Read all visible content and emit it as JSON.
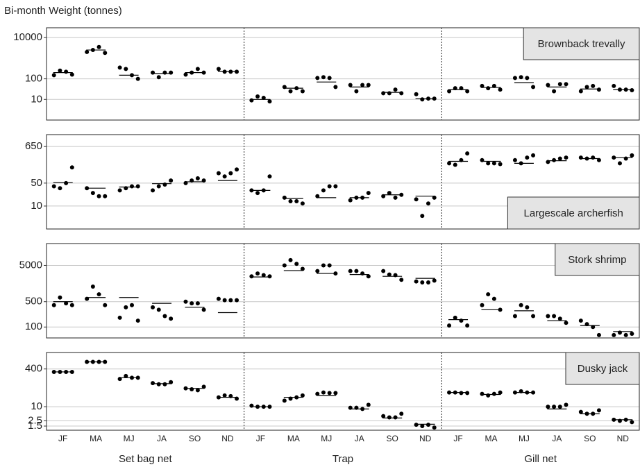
{
  "chart_data": {
    "type": "dot",
    "title": "Bi-month Weight (tonnes)",
    "log": true,
    "grid": true,
    "groups": [
      "Set bag net",
      "Trap",
      "Gill net"
    ],
    "categories": [
      "JF",
      "MA",
      "MJ",
      "JA",
      "SO",
      "ND"
    ],
    "point_color": "#000000",
    "mean_color": "#000000",
    "panels": [
      {
        "name": "Brownback trevally",
        "label_corner": "top-right",
        "ylim": [
          1,
          30000
        ],
        "yticks": [
          10000,
          100,
          10
        ],
        "points": [
          [
            150,
            250,
            220,
            160
          ],
          [
            2000,
            2500,
            3500,
            1800
          ],
          [
            350,
            300,
            150,
            100
          ],
          [
            200,
            120,
            200,
            200
          ],
          [
            160,
            200,
            300,
            200
          ],
          [
            300,
            220,
            220,
            220
          ],
          [
            9,
            14,
            12,
            8
          ],
          [
            40,
            25,
            35,
            25
          ],
          [
            110,
            120,
            110,
            40
          ],
          [
            50,
            25,
            50,
            50
          ],
          [
            20,
            20,
            30,
            20
          ],
          [
            18,
            10,
            11,
            11
          ],
          [
            25,
            35,
            35,
            25
          ],
          [
            45,
            35,
            45,
            30
          ],
          [
            110,
            120,
            110,
            40
          ],
          [
            50,
            25,
            55,
            55
          ],
          [
            25,
            40,
            45,
            30
          ],
          [
            45,
            30,
            30,
            28
          ]
        ],
        "means": [
          200,
          2500,
          150,
          180,
          200,
          230,
          10,
          35,
          70,
          40,
          22,
          11,
          30,
          38,
          65,
          40,
          32,
          30
        ]
      },
      {
        "name": "Largescale archerfish",
        "label_corner": "bottom-right",
        "ylim": [
          2,
          1500
        ],
        "yticks": [
          650,
          50,
          10
        ],
        "points": [
          [
            40,
            35,
            50,
            150
          ],
          [
            35,
            25,
            20,
            20
          ],
          [
            30,
            35,
            40,
            40
          ],
          [
            30,
            40,
            45,
            60
          ],
          [
            50,
            60,
            70,
            60
          ],
          [
            100,
            80,
            100,
            130
          ],
          [
            30,
            25,
            30,
            80
          ],
          [
            18,
            14,
            14,
            12
          ],
          [
            20,
            30,
            40,
            40
          ],
          [
            15,
            18,
            18,
            25
          ],
          [
            20,
            25,
            18,
            22
          ],
          [
            16,
            5,
            12,
            18
          ],
          [
            200,
            180,
            250,
            400
          ],
          [
            250,
            200,
            200,
            190
          ],
          [
            250,
            200,
            300,
            350
          ],
          [
            220,
            250,
            280,
            300
          ],
          [
            300,
            280,
            300,
            250
          ],
          [
            300,
            200,
            280,
            350
          ]
        ],
        "means": [
          52,
          35,
          38,
          48,
          55,
          60,
          30,
          17,
          18,
          18,
          22,
          20,
          230,
          230,
          200,
          240,
          280,
          300
        ]
      },
      {
        "name": "Stork shrimp",
        "label_corner": "top-right",
        "ylim": [
          50,
          20000
        ],
        "yticks": [
          5000,
          500,
          100
        ],
        "points": [
          [
            400,
            650,
            450,
            400
          ],
          [
            600,
            1300,
            800,
            400
          ],
          [
            180,
            350,
            400,
            150
          ],
          [
            350,
            300,
            200,
            170
          ],
          [
            500,
            450,
            450,
            300
          ],
          [
            600,
            550,
            550,
            550
          ],
          [
            2500,
            3000,
            2700,
            2500
          ],
          [
            5000,
            7000,
            5500,
            4000
          ],
          [
            3500,
            5000,
            5000,
            3000
          ],
          [
            3500,
            3500,
            3000,
            2500
          ],
          [
            3500,
            2800,
            2700,
            2000
          ],
          [
            1800,
            1700,
            1700,
            1900
          ],
          [
            110,
            180,
            150,
            110
          ],
          [
            400,
            800,
            600,
            300
          ],
          [
            200,
            400,
            350,
            200
          ],
          [
            200,
            200,
            170,
            130
          ],
          [
            150,
            120,
            100,
            60
          ],
          [
            60,
            70,
            60,
            65
          ]
        ],
        "means": [
          500,
          650,
          650,
          450,
          350,
          250,
          2400,
          3600,
          3000,
          2800,
          2500,
          2200,
          160,
          300,
          280,
          150,
          110,
          75
        ]
      },
      {
        "name": "Dusky jack",
        "label_corner": "top-right",
        "ylim": [
          1,
          2000
        ],
        "yticks": [
          400,
          10,
          2.5,
          1.5
        ],
        "points": [
          [
            300,
            300,
            300,
            300
          ],
          [
            800,
            800,
            800,
            800
          ],
          [
            150,
            200,
            170,
            170
          ],
          [
            100,
            90,
            90,
            110
          ],
          [
            60,
            55,
            50,
            70
          ],
          [
            25,
            30,
            28,
            22
          ],
          [
            11,
            10,
            10,
            10
          ],
          [
            18,
            22,
            25,
            30
          ],
          [
            35,
            40,
            38,
            38
          ],
          [
            9,
            9,
            8,
            12
          ],
          [
            4,
            3.5,
            3.5,
            5
          ],
          [
            1.7,
            1.5,
            1.7,
            1.3
          ],
          [
            40,
            40,
            38,
            38
          ],
          [
            35,
            30,
            35,
            40
          ],
          [
            40,
            45,
            40,
            40
          ],
          [
            10,
            10,
            10,
            12
          ],
          [
            6,
            5,
            5,
            7
          ],
          [
            2.8,
            2.5,
            2.8,
            2.2
          ]
        ],
        "means": [
          300,
          800,
          170,
          95,
          60,
          25,
          10,
          25,
          30,
          8,
          3.3,
          1.8,
          40,
          33,
          40,
          8,
          5,
          2.8
        ]
      }
    ]
  }
}
